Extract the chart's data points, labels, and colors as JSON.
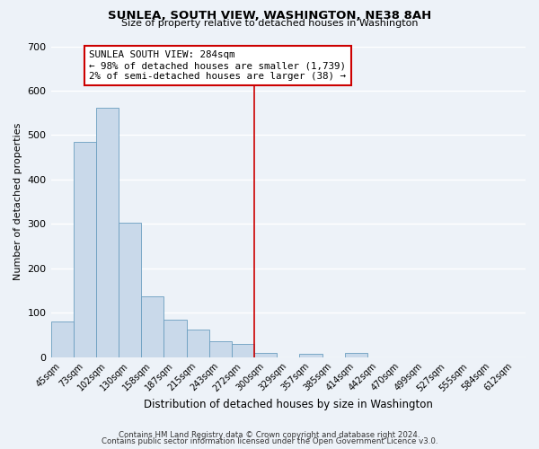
{
  "title": "SUNLEA, SOUTH VIEW, WASHINGTON, NE38 8AH",
  "subtitle": "Size of property relative to detached houses in Washington",
  "xlabel": "Distribution of detached houses by size in Washington",
  "ylabel": "Number of detached properties",
  "bar_color": "#c9d9ea",
  "bar_edge_color": "#6a9ec0",
  "background_color": "#edf2f8",
  "grid_color": "#ffffff",
  "bin_labels": [
    "45sqm",
    "73sqm",
    "102sqm",
    "130sqm",
    "158sqm",
    "187sqm",
    "215sqm",
    "243sqm",
    "272sqm",
    "300sqm",
    "329sqm",
    "357sqm",
    "385sqm",
    "414sqm",
    "442sqm",
    "470sqm",
    "499sqm",
    "527sqm",
    "555sqm",
    "584sqm",
    "612sqm"
  ],
  "bar_values": [
    80,
    485,
    562,
    302,
    137,
    85,
    63,
    36,
    30,
    10,
    0,
    7,
    0,
    10,
    0,
    0,
    0,
    0,
    0,
    0,
    0
  ],
  "vline_bin": 8.5,
  "vline_color": "#cc0000",
  "annotation_title": "SUNLEA SOUTH VIEW: 284sqm",
  "annotation_line2": "← 98% of detached houses are smaller (1,739)",
  "annotation_line3": "2% of semi-detached houses are larger (38) →",
  "annotation_box_color": "#ffffff",
  "annotation_box_edge_color": "#cc0000",
  "ylim": [
    0,
    700
  ],
  "yticks": [
    0,
    100,
    200,
    300,
    400,
    500,
    600,
    700
  ],
  "footer1": "Contains HM Land Registry data © Crown copyright and database right 2024.",
  "footer2": "Contains public sector information licensed under the Open Government Licence v3.0."
}
